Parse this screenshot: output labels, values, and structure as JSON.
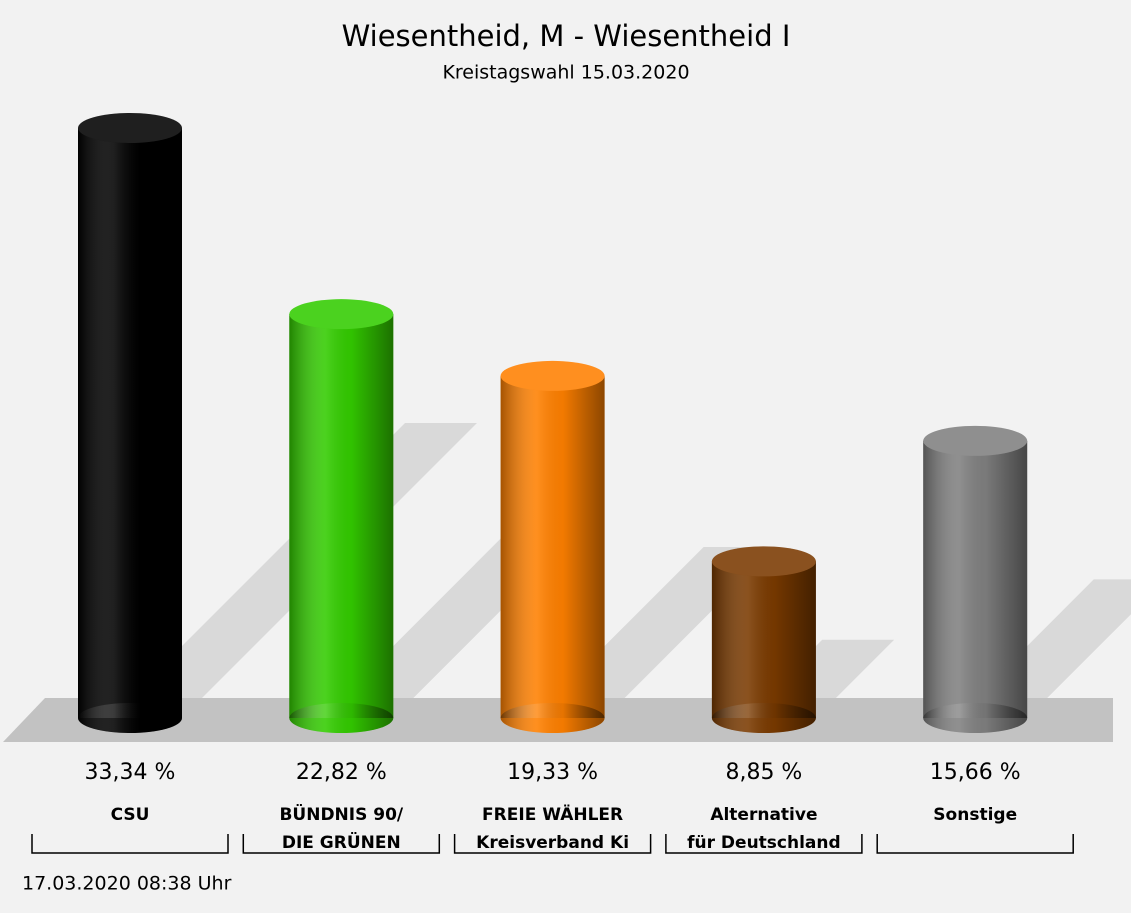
{
  "chart_data": {
    "type": "bar",
    "title": "Wiesentheid, M - Wiesentheid I",
    "subtitle": "Kreistagswahl 15.03.2020",
    "categories": [
      [
        "CSU"
      ],
      [
        "BÜNDNIS 90/",
        "DIE GRÜNEN"
      ],
      [
        "FREIE WÄHLER",
        "Kreisverband Ki"
      ],
      [
        "Alternative",
        "für Deutschland"
      ],
      [
        "Sonstige"
      ]
    ],
    "values": [
      33.34,
      22.82,
      19.33,
      8.85,
      15.66
    ],
    "value_labels": [
      "33,34 %",
      "22,82 %",
      "19,33 %",
      "8,85 %",
      "15,66 %"
    ],
    "colors": [
      "#000000",
      "#33cc00",
      "#ff8000",
      "#7a3a00",
      "#808080"
    ],
    "timestamp": "17.03.2020 08:38 Uhr"
  }
}
